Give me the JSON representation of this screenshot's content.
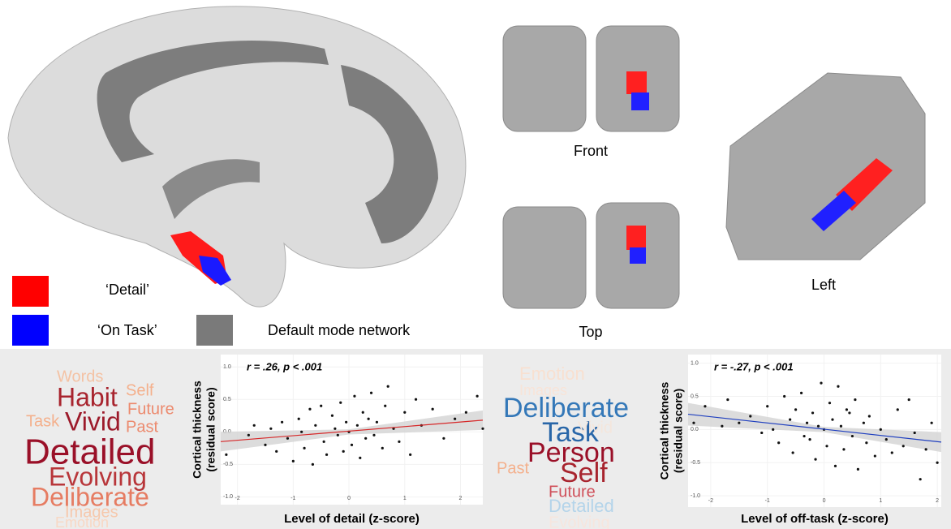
{
  "chart_data": [
    {
      "type": "scatter",
      "annotation": "r = .26, p < .001",
      "x_label": "Level of detail (z-score)",
      "y_label": [
        "Cortical thickness",
        "(residual score)"
      ],
      "xlim": [
        -2.3,
        2.4
      ],
      "ylim": [
        -1.12,
        1.19
      ],
      "xticks": [
        -2,
        -1,
        0,
        1,
        2
      ],
      "yticks": [
        {
          "value": -1,
          "label": "-1.0"
        },
        {
          "value": -0.5,
          "label": "-0.5"
        },
        {
          "value": 0,
          "label": "0.0"
        },
        {
          "value": 0.5,
          "label": "0.5"
        },
        {
          "value": 1,
          "label": "1.0"
        }
      ],
      "color": "#111111",
      "x": [
        -2.2,
        -1.8,
        -1.7,
        -1.5,
        -1.4,
        -1.3,
        -1.2,
        -1.1,
        -1.0,
        -0.9,
        -0.85,
        -0.8,
        -0.7,
        -0.65,
        -0.6,
        -0.5,
        -0.45,
        -0.4,
        -0.3,
        -0.25,
        -0.2,
        -0.15,
        -0.1,
        -0.05,
        0.0,
        0.05,
        0.1,
        0.15,
        0.2,
        0.25,
        0.3,
        0.35,
        0.4,
        0.45,
        0.5,
        0.6,
        0.65,
        0.7,
        0.8,
        0.9,
        1.0,
        1.1,
        1.2,
        1.3,
        1.5,
        1.7,
        1.9,
        2.1,
        2.3,
        2.4
      ],
      "y": [
        -0.35,
        -0.05,
        0.1,
        -0.2,
        0.05,
        -0.3,
        0.15,
        -0.1,
        -0.45,
        0.2,
        0.0,
        -0.25,
        0.35,
        -0.5,
        0.1,
        0.4,
        -0.15,
        -0.35,
        0.25,
        0.05,
        -0.05,
        0.45,
        -0.3,
        0.15,
        0.0,
        -0.2,
        0.55,
        0.1,
        -0.4,
        0.3,
        -0.1,
        0.2,
        0.6,
        -0.05,
        0.15,
        -0.25,
        0.4,
        0.7,
        0.05,
        -0.15,
        0.3,
        -0.35,
        0.5,
        0.1,
        0.35,
        -0.1,
        0.2,
        0.3,
        0.55,
        0.05
      ],
      "fit": {
        "color": "#d62728",
        "x": [
          -2.3,
          2.4
        ],
        "y": [
          -0.15,
          0.18
        ]
      },
      "band": {
        "color": "#d3d3d3",
        "x": [
          -2.3,
          0,
          2.4
        ],
        "lower": [
          -0.3,
          -0.04,
          0.03
        ],
        "upper": [
          0.0,
          0.04,
          0.33
        ]
      }
    },
    {
      "type": "scatter",
      "annotation": "r = -.27, p < .001",
      "x_label": "Level of off-task (z-score)",
      "y_label": [
        "Cortical thickness",
        "(residual score)"
      ],
      "xlim": [
        -2.4,
        2.07
      ],
      "ylim": [
        -1.17,
        1.13
      ],
      "xticks": [
        -2,
        -1,
        0,
        1,
        2
      ],
      "yticks": [
        {
          "value": -1,
          "label": "-1.0"
        },
        {
          "value": -0.5,
          "label": "-0.5"
        },
        {
          "value": 0,
          "label": "0.0"
        },
        {
          "value": 0.5,
          "label": "0.5"
        },
        {
          "value": 1,
          "label": "1.0"
        }
      ],
      "color": "#111111",
      "x": [
        -2.3,
        -2.1,
        -1.8,
        -1.7,
        -1.5,
        -1.3,
        -1.1,
        -1.0,
        -0.9,
        -0.8,
        -0.7,
        -0.6,
        -0.55,
        -0.5,
        -0.4,
        -0.35,
        -0.3,
        -0.2,
        -0.15,
        -0.1,
        -0.05,
        0.0,
        0.05,
        0.1,
        0.15,
        0.2,
        0.25,
        0.3,
        0.35,
        0.4,
        0.5,
        0.55,
        0.6,
        0.7,
        0.75,
        0.8,
        0.9,
        1.0,
        1.1,
        1.2,
        1.3,
        1.4,
        1.5,
        1.6,
        1.7,
        1.8,
        1.9,
        2.0,
        -0.25,
        0.45
      ],
      "y": [
        0.1,
        0.35,
        0.05,
        0.45,
        0.1,
        0.2,
        -0.05,
        0.35,
        0.0,
        -0.2,
        0.5,
        0.15,
        -0.35,
        0.3,
        0.55,
        -0.1,
        0.1,
        0.25,
        -0.45,
        0.05,
        0.7,
        0.0,
        -0.25,
        0.4,
        0.15,
        -0.55,
        0.65,
        0.05,
        -0.3,
        0.3,
        -0.1,
        0.45,
        -0.6,
        0.1,
        -0.2,
        0.2,
        -0.4,
        0.0,
        -0.15,
        -0.35,
        0.3,
        -0.25,
        0.45,
        -0.05,
        -0.75,
        -0.3,
        0.1,
        -0.5,
        -0.15,
        0.25
      ],
      "fit": {
        "color": "#1f3fbf",
        "x": [
          -2.4,
          2.07
        ],
        "y": [
          0.23,
          -0.19
        ]
      },
      "band": {
        "color": "#d3d3d3",
        "x": [
          -2.4,
          0,
          2.07
        ],
        "lower": [
          0.06,
          -0.04,
          -0.34
        ],
        "upper": [
          0.4,
          0.04,
          -0.04
        ]
      }
    }
  ],
  "legend": [
    {
      "label": "‘Detail’",
      "color": "#ff0000"
    },
    {
      "label": "‘On Task’",
      "color": "#0000ff"
    },
    {
      "label": "Default mode network",
      "color": "#7a7a7a"
    }
  ],
  "views": [
    "Front",
    "Top",
    "Left"
  ],
  "word_clouds": [
    {
      "words": [
        {
          "text": "Words",
          "color": "#f4c2a4"
        },
        {
          "text": "Habit",
          "color": "#a8242e"
        },
        {
          "text": "Self",
          "color": "#f4b08c"
        },
        {
          "text": "Future",
          "color": "#ec8a6e"
        },
        {
          "text": "Task",
          "color": "#f4b08c"
        },
        {
          "text": "Vivid",
          "color": "#9c1a2a"
        },
        {
          "text": "Past",
          "color": "#ec8a6e"
        },
        {
          "text": "Detailed",
          "color": "#9a1028"
        },
        {
          "text": "Evolving",
          "color": "#b8363a"
        },
        {
          "text": "Deliberate",
          "color": "#e67c62"
        },
        {
          "text": "Images",
          "color": "#f6c8ac"
        },
        {
          "text": "Emotion",
          "color": "#f8d8c4"
        }
      ]
    },
    {
      "words": [
        {
          "text": "Emotion",
          "color": "#f8e0d0"
        },
        {
          "text": "Images",
          "color": "#f8e4d8"
        },
        {
          "text": "Deliberate",
          "color": "#3478b8"
        },
        {
          "text": "Task",
          "color": "#2866a8"
        },
        {
          "text": "Vivid",
          "color": "#f4e6dc"
        },
        {
          "text": "Person",
          "color": "#9a1028"
        },
        {
          "text": "Past",
          "color": "#f4b08c"
        },
        {
          "text": "Self",
          "color": "#a8242e"
        },
        {
          "text": "Future",
          "color": "#d0505a"
        },
        {
          "text": "Detailed",
          "color": "#b4d4ea"
        },
        {
          "text": "Evolving",
          "color": "#f6e6de"
        }
      ]
    }
  ]
}
